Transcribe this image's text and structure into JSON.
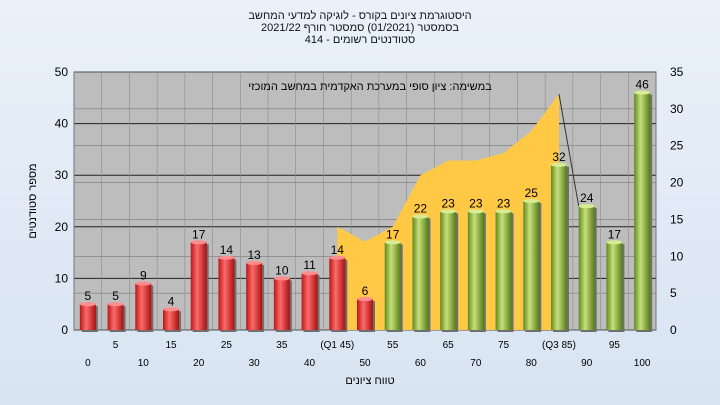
{
  "chart_data": {
    "type": "bar",
    "title_lines": [
      "היסטוגרמת ציונים בקורס - לוגיקה למדעי המחשב",
      "בסמסטר  (01/2021)  סמסטר חורף  2021/22",
      "סטודנטים רשומים - 414"
    ],
    "xlabel": "טווח ציונים",
    "ylabel": "מספר סטודנטים",
    "annotation": "במשימה: ציון סופי במערכת האקדמית במחשב המוכזי",
    "ylim_left": [
      0,
      50
    ],
    "ylim_right": [
      0,
      35
    ],
    "yticks_left": [
      0,
      10,
      20,
      30,
      40,
      50
    ],
    "yticks_right": [
      0,
      5,
      10,
      15,
      20,
      25,
      30,
      35
    ],
    "x_labels_upper": [
      "5",
      "15",
      "25",
      "35",
      "(Q1 45)",
      "55",
      "65",
      "75",
      "(Q3 85)",
      "95"
    ],
    "x_labels_lower": [
      "0",
      "10",
      "20",
      "30",
      "40",
      "50",
      "60",
      "70",
      "80",
      "90",
      "100"
    ],
    "categories": [
      "0",
      "5",
      "10",
      "15",
      "20",
      "25",
      "30",
      "35",
      "40",
      "45",
      "50",
      "55",
      "60",
      "65",
      "70",
      "75",
      "80",
      "85",
      "90",
      "95",
      "100"
    ],
    "values": [
      5,
      5,
      9,
      4,
      17,
      14,
      13,
      10,
      11,
      14,
      6,
      17,
      22,
      23,
      23,
      23,
      25,
      32,
      24,
      17,
      46
    ],
    "bar_colors": [
      "red",
      "red",
      "red",
      "red",
      "red",
      "red",
      "red",
      "red",
      "red",
      "red",
      "red",
      "green",
      "green",
      "green",
      "green",
      "green",
      "green",
      "green",
      "green",
      "green",
      "green"
    ],
    "band": {
      "x_from": 9,
      "x_to": 17,
      "values_right_axis": [
        14,
        12,
        14,
        21,
        23,
        23,
        24,
        27,
        32
      ]
    },
    "colors": {
      "red": "#e03030",
      "green": "#8ab83c",
      "band": "#ffc845",
      "plot_bg": "#bdbdbd"
    },
    "grid": true
  }
}
